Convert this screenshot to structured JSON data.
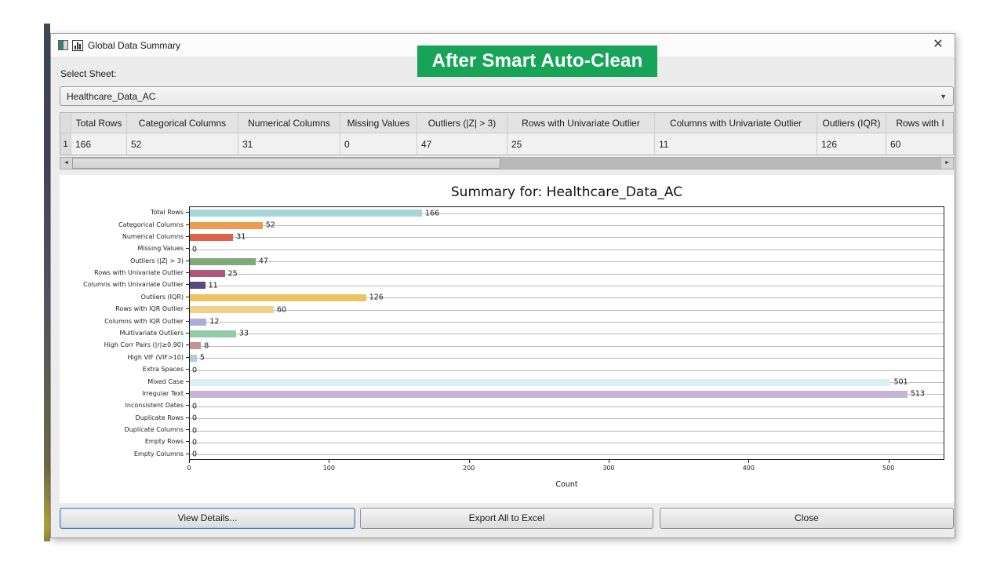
{
  "banner": {
    "text": "After Smart Auto-Clean",
    "bg": "#17a458"
  },
  "window": {
    "title": "Global Data Summary",
    "close_glyph": "✕"
  },
  "sheet_selector": {
    "label": "Select Sheet:",
    "value": "Healthcare_Data_AC"
  },
  "table": {
    "row_number": "1",
    "columns": [
      "Total Rows",
      "Categorical Columns",
      "Numerical Columns",
      "Missing Values",
      "Outliers (|Z| > 3)",
      "Rows with Univariate Outlier",
      "Columns with Univariate Outlier",
      "Outliers (IQR)",
      "Rows with I"
    ],
    "values": [
      "166",
      "52",
      "31",
      "0",
      "47",
      "25",
      "11",
      "126",
      "60"
    ]
  },
  "scrollbar": {
    "left_arrow": "◄",
    "right_arrow": "►"
  },
  "chart_data": {
    "type": "bar",
    "orientation": "horizontal",
    "title": "Summary for: Healthcare_Data_AC",
    "xlabel": "Count",
    "xlim": [
      0,
      540
    ],
    "xticks": [
      0,
      100,
      200,
      300,
      400,
      500
    ],
    "grid": "horizontal gridlines per category",
    "categories": [
      "Total Rows",
      "Categorical Columns",
      "Numerical Columns",
      "Missing Values",
      "Outliers (|Z| > 3)",
      "Rows with Univariate Outlier",
      "Columns with Univariate Outlier",
      "Outliers (IQR)",
      "Rows with IQR Outlier",
      "Columns with IQR Outlier",
      "Multivariate Outliers",
      "High Corr Pairs (|r|≥0.90)",
      "High VIF (VIF>10)",
      "Extra Spaces",
      "Mixed Case",
      "Irregular Text",
      "Inconsistent Dates",
      "Duplicate Rows",
      "Duplicate Columns",
      "Empty Rows",
      "Empty Columns"
    ],
    "values": [
      166,
      52,
      31,
      0,
      47,
      25,
      11,
      126,
      60,
      12,
      33,
      8,
      5,
      0,
      501,
      513,
      0,
      0,
      0,
      0,
      0
    ],
    "colors": [
      "#a5d6da",
      "#ef9b51",
      "#e0614c",
      "#cccccc",
      "#7fa977",
      "#b1567a",
      "#564b7e",
      "#eac363",
      "#eed28c",
      "#a9afd8",
      "#90cba6",
      "#c59492",
      "#aecde2",
      "#cccccc",
      "#daf0f3",
      "#c5b4d5",
      "#cccccc",
      "#cccccc",
      "#cccccc",
      "#cccccc",
      "#cccccc"
    ]
  },
  "buttons": [
    {
      "label": "View Details..."
    },
    {
      "label": "Export All to Excel"
    },
    {
      "label": "Close"
    }
  ]
}
